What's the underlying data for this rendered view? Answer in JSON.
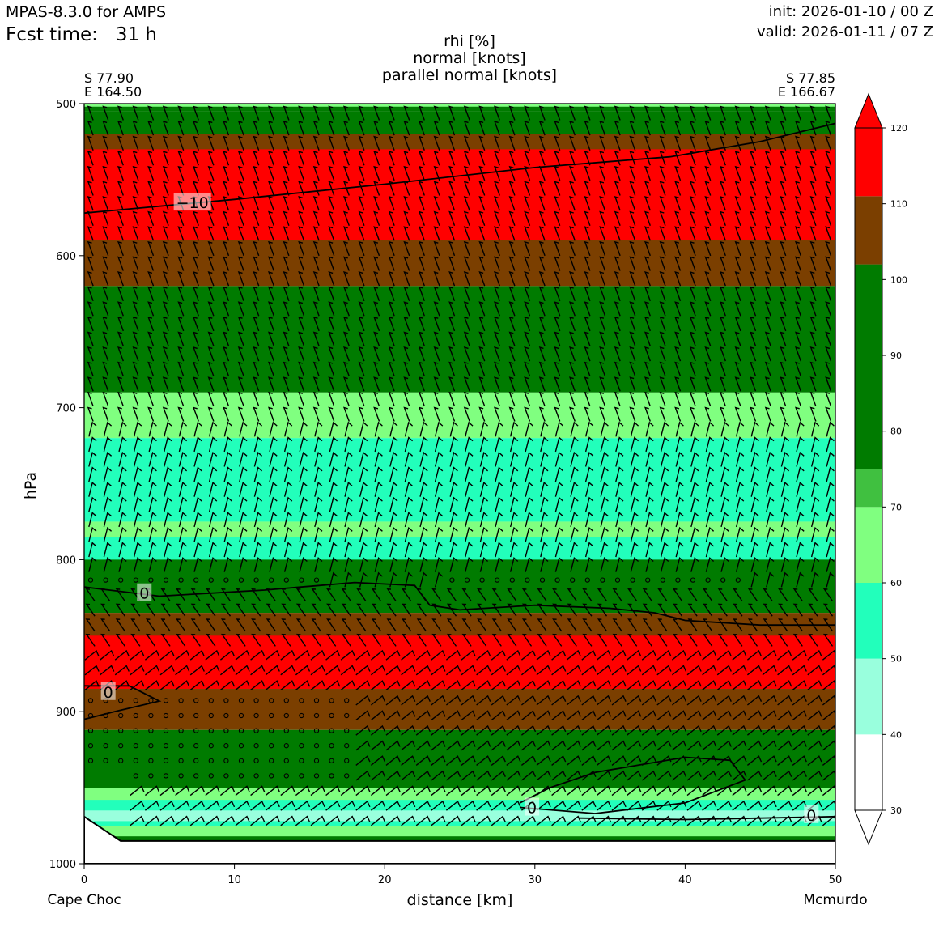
{
  "header": {
    "model": "MPAS-8.3.0 for AMPS",
    "fcst_label": "Fcst time:",
    "fcst_value": "31 h",
    "init": "init: 2026-01-10 / 00 Z",
    "valid": "valid: 2026-01-11 / 07 Z"
  },
  "chart_data": {
    "type": "heatmap",
    "title": [
      "rhi [%]",
      "normal [knots]",
      "parallel normal [knots]"
    ],
    "xlabel": "distance [km]",
    "ylabel": "hPa",
    "xlim": [
      0,
      50
    ],
    "ylim": [
      1000,
      500
    ],
    "x_ticks": [
      0,
      10,
      20,
      30,
      40,
      50
    ],
    "y_ticks": [
      500,
      600,
      700,
      800,
      900,
      1000
    ],
    "start": {
      "lat": "S 77.90",
      "lon": "E 164.50",
      "name": "Cape Choc"
    },
    "end": {
      "lat": "S 77.85",
      "lon": "E 166.67",
      "name": "Mcmurdo"
    },
    "colorbar": {
      "levels": [
        30,
        40,
        50,
        60,
        70,
        80,
        90,
        100,
        110,
        120
      ],
      "bins": [
        {
          "from": 30,
          "to": 40,
          "color": "#ffffff"
        },
        {
          "from": 40,
          "to": 50,
          "color": "#99ffdd"
        },
        {
          "from": 50,
          "to": 60,
          "color": "#22ffbb"
        },
        {
          "from": 60,
          "to": 70,
          "color": "#80ff80"
        },
        {
          "from": 70,
          "to": 75,
          "color": "#40c040"
        },
        {
          "from": 75,
          "to": 102,
          "color": "#007b00"
        },
        {
          "from": 102,
          "to": 111,
          "color": "#7b3f00"
        },
        {
          "from": 111,
          "to": 120,
          "color": "#ff0000"
        }
      ]
    },
    "colors": {
      "white": "#ffffff",
      "aqua_light": "#99ffdd",
      "aqua": "#22ffbb",
      "light_green": "#80ff80",
      "dark_green": "#007b00",
      "brown": "#7b3f00",
      "red": "#ff0000"
    },
    "rhi_layers": [
      {
        "band": "#007b00",
        "p_top": 500,
        "p_bottom": 505
      },
      {
        "band": "#80ff80",
        "p_top": 500,
        "p_bottom": 502
      },
      {
        "band": "#007b00",
        "p_top": 505,
        "p_bottom": 520
      },
      {
        "band": "#7b3f00",
        "p_top": 520,
        "p_bottom": 620
      },
      {
        "band": "#ff0000",
        "p_top": 530,
        "p_bottom": 590
      },
      {
        "band": "#007b00",
        "p_top": 620,
        "p_bottom": 690
      },
      {
        "band": "#80ff80",
        "p_top": 690,
        "p_bottom": 720
      },
      {
        "band": "#22ffbb",
        "p_top": 720,
        "p_bottom": 775
      },
      {
        "band": "#80ff80",
        "p_top": 775,
        "p_bottom": 800
      },
      {
        "band": "#22ffbb",
        "p_top": 785,
        "p_bottom": 830
      },
      {
        "band": "#007b00",
        "p_top": 800,
        "p_bottom": 835
      },
      {
        "band": "#7b3f00",
        "p_top": 835,
        "p_bottom": 855
      },
      {
        "band": "#ff0000",
        "p_top": 850,
        "p_bottom": 885
      },
      {
        "band": "#7b3f00",
        "p_top": 885,
        "p_bottom": 912
      },
      {
        "band": "#007b00",
        "p_top": 912,
        "p_bottom": 985
      },
      {
        "band": "#80ff80",
        "p_top": 950,
        "p_bottom": 982
      },
      {
        "band": "#22ffbb",
        "p_top": 958,
        "p_bottom": 975
      },
      {
        "band": "#99ffdd",
        "p_top": 965,
        "p_bottom": 972
      }
    ],
    "terrain_pressure_hPa": 985,
    "contours": [
      {
        "label": "−10",
        "label_x": 7.2,
        "label_p": 565,
        "points": [
          [
            0,
            572
          ],
          [
            10,
            563
          ],
          [
            20,
            553
          ],
          [
            30,
            542
          ],
          [
            39,
            535
          ],
          [
            45,
            525
          ],
          [
            50,
            513
          ]
        ]
      },
      {
        "label": "0",
        "label_x": 4.0,
        "label_p": 822,
        "points": [
          [
            0,
            818
          ],
          [
            5,
            824
          ],
          [
            12,
            820
          ],
          [
            18,
            815
          ],
          [
            22,
            817
          ],
          [
            23,
            830
          ],
          [
            25,
            833
          ],
          [
            30,
            830
          ],
          [
            35,
            832
          ],
          [
            38,
            835
          ],
          [
            40,
            840
          ],
          [
            45,
            843
          ],
          [
            50,
            843
          ]
        ]
      },
      {
        "label": "0",
        "label_x": 1.6,
        "label_p": 887,
        "points": [
          [
            0,
            883
          ],
          [
            3,
            883
          ],
          [
            5,
            893
          ],
          [
            2,
            900
          ],
          [
            0,
            905
          ]
        ]
      },
      {
        "label": "0",
        "label_x": 29.8,
        "label_p": 963,
        "points": [
          [
            29,
            960
          ],
          [
            31,
            950
          ],
          [
            34,
            940
          ],
          [
            37,
            935
          ],
          [
            40,
            930
          ],
          [
            43,
            932
          ],
          [
            44,
            945
          ],
          [
            40,
            960
          ],
          [
            34,
            967
          ],
          [
            29,
            963
          ]
        ]
      },
      {
        "label": "0",
        "label_x": 48.4,
        "label_p": 968,
        "points": [
          [
            33,
            970
          ],
          [
            40,
            971
          ],
          [
            45,
            970
          ],
          [
            50,
            969
          ]
        ]
      }
    ]
  }
}
